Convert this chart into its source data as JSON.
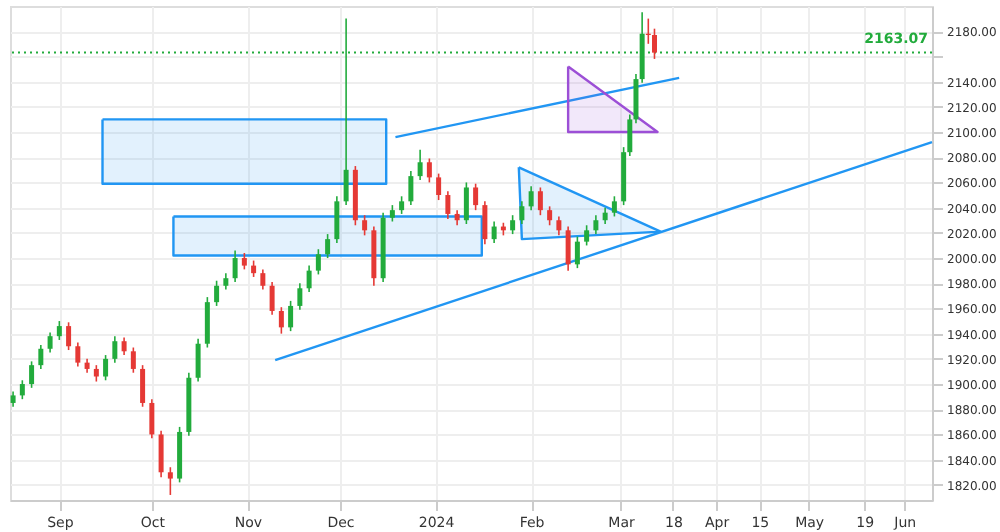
{
  "chart_data": {
    "type": "candlestick",
    "x": [
      "2023-08-17",
      "2023-08-20",
      "2023-08-23",
      "2023-08-26",
      "2023-08-29",
      "2023-09-01",
      "2023-09-04",
      "2023-09-07",
      "2023-09-10",
      "2023-09-13",
      "2023-09-16",
      "2023-09-19",
      "2023-09-22",
      "2023-09-25",
      "2023-09-28",
      "2023-10-01",
      "2023-10-04",
      "2023-10-07",
      "2023-10-10",
      "2023-10-13",
      "2023-10-16",
      "2023-10-19",
      "2023-10-22",
      "2023-10-25",
      "2023-10-28",
      "2023-10-31",
      "2023-11-03",
      "2023-11-06",
      "2023-11-09",
      "2023-11-12",
      "2023-11-15",
      "2023-11-18",
      "2023-11-21",
      "2023-11-24",
      "2023-11-27",
      "2023-11-30",
      "2023-12-03",
      "2023-12-06",
      "2023-12-09",
      "2023-12-12",
      "2023-12-15",
      "2023-12-18",
      "2023-12-21",
      "2023-12-24",
      "2023-12-27",
      "2023-12-30",
      "2024-01-02",
      "2024-01-05",
      "2024-01-08",
      "2024-01-11",
      "2024-01-14",
      "2024-01-17",
      "2024-01-20",
      "2024-01-23",
      "2024-01-26",
      "2024-01-29",
      "2024-02-01",
      "2024-02-04",
      "2024-02-07",
      "2024-02-10",
      "2024-02-13",
      "2024-02-16",
      "2024-02-19",
      "2024-02-22",
      "2024-02-25",
      "2024-02-28",
      "2024-03-02",
      "2024-03-04",
      "2024-03-06",
      "2024-03-08",
      "2024-03-10",
      "2024-03-12"
    ],
    "ohlc": [
      [
        1885,
        1894,
        1882,
        1891
      ],
      [
        1891,
        1903,
        1888,
        1900
      ],
      [
        1900,
        1918,
        1897,
        1915
      ],
      [
        1915,
        1931,
        1912,
        1928
      ],
      [
        1928,
        1941,
        1925,
        1938
      ],
      [
        1938,
        1950,
        1935,
        1946
      ],
      [
        1946,
        1949,
        1927,
        1930
      ],
      [
        1930,
        1933,
        1914,
        1917
      ],
      [
        1917,
        1920,
        1909,
        1912
      ],
      [
        1912,
        1915,
        1902,
        1906
      ],
      [
        1906,
        1923,
        1903,
        1920
      ],
      [
        1920,
        1938,
        1917,
        1934
      ],
      [
        1934,
        1937,
        1923,
        1926
      ],
      [
        1926,
        1929,
        1909,
        1912
      ],
      [
        1912,
        1915,
        1882,
        1885
      ],
      [
        1885,
        1888,
        1857,
        1860
      ],
      [
        1860,
        1863,
        1826,
        1830
      ],
      [
        1830,
        1834,
        1812,
        1825
      ],
      [
        1825,
        1866,
        1822,
        1862
      ],
      [
        1862,
        1909,
        1859,
        1905
      ],
      [
        1905,
        1936,
        1902,
        1932
      ],
      [
        1932,
        1969,
        1929,
        1965
      ],
      [
        1965,
        1982,
        1962,
        1978
      ],
      [
        1978,
        1988,
        1975,
        1984
      ],
      [
        1984,
        2006,
        1981,
        2000
      ],
      [
        2000,
        2004,
        1991,
        1994
      ],
      [
        1994,
        1998,
        1985,
        1988
      ],
      [
        1988,
        1991,
        1975,
        1978
      ],
      [
        1978,
        1981,
        1955,
        1958
      ],
      [
        1958,
        1961,
        1940,
        1945
      ],
      [
        1945,
        1966,
        1942,
        1962
      ],
      [
        1962,
        1980,
        1959,
        1976
      ],
      [
        1976,
        1994,
        1973,
        1990
      ],
      [
        1990,
        2007,
        1987,
        2003
      ],
      [
        2003,
        2019,
        2000,
        2015
      ],
      [
        2015,
        2049,
        2012,
        2045
      ],
      [
        2045,
        2190,
        2042,
        2070
      ],
      [
        2070,
        2073,
        2026,
        2030
      ],
      [
        2030,
        2034,
        2018,
        2022
      ],
      [
        2022,
        2025,
        1978,
        1984
      ],
      [
        1984,
        2036,
        1981,
        2032
      ],
      [
        2032,
        2042,
        2029,
        2038
      ],
      [
        2038,
        2049,
        2035,
        2045
      ],
      [
        2045,
        2069,
        2042,
        2065
      ],
      [
        2065,
        2086,
        2062,
        2076
      ],
      [
        2076,
        2079,
        2060,
        2064
      ],
      [
        2064,
        2067,
        2046,
        2050
      ],
      [
        2050,
        2053,
        2031,
        2035
      ],
      [
        2035,
        2038,
        2026,
        2030
      ],
      [
        2030,
        2060,
        2027,
        2056
      ],
      [
        2056,
        2059,
        2038,
        2042
      ],
      [
        2042,
        2045,
        2011,
        2015
      ],
      [
        2015,
        2029,
        2012,
        2025
      ],
      [
        2025,
        2028,
        2018,
        2022
      ],
      [
        2022,
        2034,
        2019,
        2030
      ],
      [
        2030,
        2045,
        2027,
        2041
      ],
      [
        2041,
        2057,
        2038,
        2053
      ],
      [
        2053,
        2056,
        2034,
        2038
      ],
      [
        2038,
        2041,
        2026,
        2030
      ],
      [
        2030,
        2033,
        2018,
        2022
      ],
      [
        2022,
        2025,
        1990,
        1995
      ],
      [
        1995,
        2017,
        1992,
        2013
      ],
      [
        2013,
        2026,
        2010,
        2022
      ],
      [
        2022,
        2034,
        2019,
        2030
      ],
      [
        2030,
        2040,
        2027,
        2036
      ],
      [
        2036,
        2049,
        2033,
        2045
      ],
      [
        2045,
        2088,
        2042,
        2084
      ],
      [
        2084,
        2114,
        2081,
        2110
      ],
      [
        2110,
        2146,
        2107,
        2142
      ],
      [
        2142,
        2195,
        2139,
        2178
      ],
      [
        2178,
        2190,
        2170,
        2177
      ],
      [
        2177,
        2182,
        2158,
        2163
      ]
    ],
    "series": [
      {
        "type": "area",
        "color": "#2196f3",
        "x": [
          "2023-09-15",
          "2023-12-16",
          "2023-12-16",
          "2023-09-15",
          "2023-09-15"
        ],
        "values": [
          2110,
          2110,
          2059,
          2059,
          2110
        ]
      },
      {
        "type": "area",
        "color": "#2196f3",
        "x": [
          "2023-10-08",
          "2024-01-16",
          "2024-01-16",
          "2023-10-08",
          "2023-10-08"
        ],
        "values": [
          2033,
          2033,
          2002,
          2002,
          2033
        ]
      },
      {
        "type": "line",
        "color": "#2196f3",
        "x": [
          "2023-12-19",
          "2024-03-20"
        ],
        "values": [
          2096,
          2143
        ]
      },
      {
        "type": "line",
        "color": "#2196f3",
        "x": [
          "2023-11-10",
          "2024-06-10"
        ],
        "values": [
          1919,
          2092
        ]
      },
      {
        "type": "area",
        "color": "#2196f3",
        "x": [
          "2024-01-28",
          "2024-03-14",
          "2024-01-29",
          "2024-01-28"
        ],
        "values": [
          2072,
          2021,
          2015,
          2072
        ]
      },
      {
        "type": "area",
        "color": "#9c4fd6",
        "x": [
          "2024-02-13",
          "2024-03-13",
          "2024-02-13",
          "2024-02-13"
        ],
        "values": [
          2152,
          2100,
          2100,
          2152
        ]
      }
    ],
    "xlim": [
      "2023-08-16",
      "2024-06-10"
    ],
    "xticks": [
      {
        "value": "2023-09-01",
        "label": "Sep"
      },
      {
        "value": "2023-10-01",
        "label": "Oct"
      },
      {
        "value": "2023-11-01",
        "label": "Nov"
      },
      {
        "value": "2023-12-01",
        "label": "Dec"
      },
      {
        "value": "2024-01-01",
        "label": "2024"
      },
      {
        "value": "2024-02-01",
        "label": "Feb"
      },
      {
        "value": "2024-03-01",
        "label": "Mar"
      },
      {
        "value": "2024-03-18",
        "label": "18"
      },
      {
        "value": "2024-04-01",
        "label": "Apr"
      },
      {
        "value": "2024-04-15",
        "label": "15"
      },
      {
        "value": "2024-05-01",
        "label": "May"
      },
      {
        "value": "2024-05-19",
        "label": "19"
      },
      {
        "value": "2024-06-01",
        "label": "Jun"
      }
    ],
    "ylim": [
      1808,
      2200
    ],
    "yticks": [
      {
        "value": 1820,
        "label": "1820.00"
      },
      {
        "value": 1840,
        "label": "1840.00"
      },
      {
        "value": 1860,
        "label": "1860.00"
      },
      {
        "value": 1880,
        "label": "1880.00"
      },
      {
        "value": 1900,
        "label": "1900.00"
      },
      {
        "value": 1920,
        "label": "1920.00"
      },
      {
        "value": 1940,
        "label": "1940.00"
      },
      {
        "value": 1960,
        "label": "1960.00"
      },
      {
        "value": 1980,
        "label": "1980.00"
      },
      {
        "value": 2000,
        "label": "2000.00"
      },
      {
        "value": 2020,
        "label": "2020.00"
      },
      {
        "value": 2040,
        "label": "2040.00"
      },
      {
        "value": 2060,
        "label": "2060.00"
      },
      {
        "value": 2080,
        "label": "2080.00"
      },
      {
        "value": 2100,
        "label": "2100.00"
      },
      {
        "value": 2120,
        "label": "2120.00"
      },
      {
        "value": 2140,
        "label": "2140.00"
      },
      {
        "value": 2160,
        "label": null
      },
      {
        "value": 2180,
        "label": "2180.00"
      }
    ],
    "grid": true,
    "ref_lines": [
      {
        "axis": "y",
        "value": 2163.07,
        "label": "2163.07",
        "color": "#22ab3c",
        "line_style": "dotted"
      }
    ]
  }
}
